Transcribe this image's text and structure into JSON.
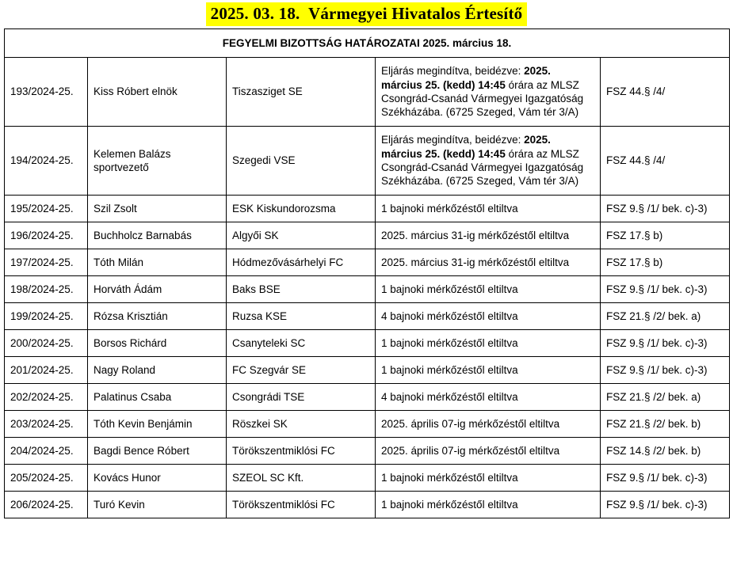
{
  "document_title": "2025. 03. 18.  Vármegyei Hivatalos Értesítő",
  "colors": {
    "title_highlight": "#ffff00",
    "table_border": "#000000",
    "text": "#000000",
    "background": "#ffffff"
  },
  "table": {
    "header": "FEGYELMI BIZOTTSÁG HATÁROZATAI 2025. március 18.",
    "columns": [
      "case_number",
      "person_name",
      "club",
      "decision",
      "regulation"
    ],
    "rows": [
      {
        "case": "193/2024-25.",
        "name": "Kiss Róbert elnök",
        "club": "Tiszasziget SE",
        "decision": [
          {
            "text": "Eljárás megindítva, beidézve: ",
            "bold": false
          },
          {
            "text": "2025. március 25. (kedd) 14:45",
            "bold": true
          },
          {
            "text": " órára az MLSZ Csongrád-Csanád Vármegyei Igazgatóság Székházába. (6725 Szeged, Vám tér 3/A)",
            "bold": false
          }
        ],
        "regulation": "FSZ 44.§ /4/",
        "tall": true
      },
      {
        "case": "194/2024-25.",
        "name": "Kelemen Balázs sportvezető",
        "club": "Szegedi VSE",
        "decision": [
          {
            "text": "Eljárás megindítva, beidézve: ",
            "bold": false
          },
          {
            "text": "2025. március 25. (kedd) 14:45",
            "bold": true
          },
          {
            "text": " órára az MLSZ Csongrád-Csanád Vármegyei Igazgatóság Székházába. (6725 Szeged, Vám tér 3/A)",
            "bold": false
          }
        ],
        "regulation": "FSZ 44.§ /4/",
        "tall": true
      },
      {
        "case": "195/2024-25.",
        "name": "Szil Zsolt",
        "club": "ESK Kiskundorozsma",
        "decision": [
          {
            "text": "1 bajnoki mérkőzéstől eltiltva",
            "bold": false
          }
        ],
        "regulation": "FSZ 9.§ /1/ bek. c)-3)",
        "tall": false
      },
      {
        "case": "196/2024-25.",
        "name": "Buchholcz Barnabás",
        "club": "Algyői SK",
        "decision": [
          {
            "text": "2025. március 31-ig mérkőzéstől eltiltva",
            "bold": false
          }
        ],
        "regulation": "FSZ 17.§ b)",
        "tall": false
      },
      {
        "case": "197/2024-25.",
        "name": "Tóth Milán",
        "club": "Hódmezővásárhelyi FC",
        "decision": [
          {
            "text": "2025. március 31-ig mérkőzéstől eltiltva",
            "bold": false
          }
        ],
        "regulation": "FSZ 17.§ b)",
        "tall": false
      },
      {
        "case": "198/2024-25.",
        "name": "Horváth Ádám",
        "club": "Baks BSE",
        "decision": [
          {
            "text": "1 bajnoki mérkőzéstől eltiltva",
            "bold": false
          }
        ],
        "regulation": "FSZ 9.§ /1/ bek. c)-3)",
        "tall": false
      },
      {
        "case": "199/2024-25.",
        "name": "Rózsa Krisztián",
        "club": "Ruzsa KSE",
        "decision": [
          {
            "text": "4 bajnoki mérkőzéstől eltiltva",
            "bold": false
          }
        ],
        "regulation": "FSZ 21.§ /2/ bek. a)",
        "tall": false
      },
      {
        "case": "200/2024-25.",
        "name": "Borsos Richárd",
        "club": "Csanyteleki SC",
        "decision": [
          {
            "text": "1 bajnoki mérkőzéstől eltiltva",
            "bold": false
          }
        ],
        "regulation": "FSZ 9.§ /1/ bek. c)-3)",
        "tall": false
      },
      {
        "case": "201/2024-25.",
        "name": "Nagy Roland",
        "club": "FC Szegvár SE",
        "decision": [
          {
            "text": "1 bajnoki mérkőzéstől eltiltva",
            "bold": false
          }
        ],
        "regulation": "FSZ 9.§ /1/ bek. c)-3)",
        "tall": false
      },
      {
        "case": "202/2024-25.",
        "name": "Palatinus Csaba",
        "club": "Csongrádi TSE",
        "decision": [
          {
            "text": "4 bajnoki mérkőzéstől eltiltva",
            "bold": false
          }
        ],
        "regulation": "FSZ 21.§ /2/ bek. a)",
        "tall": false
      },
      {
        "case": "203/2024-25.",
        "name": "Tóth Kevin Benjámin",
        "club": "Röszkei SK",
        "decision": [
          {
            "text": "2025. április 07-ig mérkőzéstől eltiltva",
            "bold": false
          }
        ],
        "regulation": "FSZ 21.§ /2/ bek. b)",
        "tall": false
      },
      {
        "case": "204/2024-25.",
        "name": "Bagdi Bence Róbert",
        "club": "Törökszentmiklósi FC",
        "decision": [
          {
            "text": "2025. április 07-ig mérkőzéstől eltiltva",
            "bold": false
          }
        ],
        "regulation": "FSZ 14.§ /2/ bek. b)",
        "tall": false
      },
      {
        "case": "205/2024-25.",
        "name": "Kovács Hunor",
        "club": "SZEOL SC Kft.",
        "decision": [
          {
            "text": "1 bajnoki mérkőzéstől eltiltva",
            "bold": false
          }
        ],
        "regulation": "FSZ 9.§ /1/ bek. c)-3)",
        "tall": false
      },
      {
        "case": "206/2024-25.",
        "name": "Turó Kevin",
        "club": "Törökszentmiklósi FC",
        "decision": [
          {
            "text": "1 bajnoki mérkőzéstől eltiltva",
            "bold": false
          }
        ],
        "regulation": "FSZ 9.§ /1/ bek. c)-3)",
        "tall": false
      }
    ]
  }
}
